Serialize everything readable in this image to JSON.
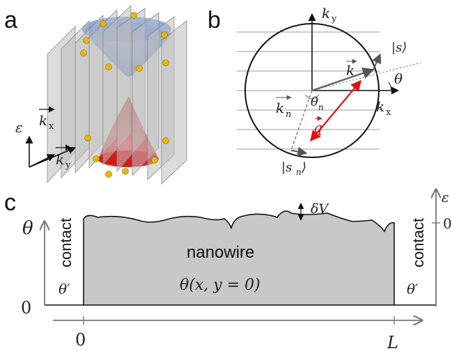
{
  "panel_a": {
    "letter": "a",
    "energy_axis": "ε",
    "kx_axis": "k",
    "kx_sub": "x",
    "ky_axis": "k",
    "ky_sub": "y"
  },
  "panel_b": {
    "letter": "b",
    "ky_label": "k",
    "ky_sub": "y",
    "kx_label": "k",
    "kx_sub": "x",
    "k_vec": "k",
    "kn_vec": "k",
    "kn_sub": "n",
    "q_vec": "q",
    "theta": "θ",
    "theta_n": "θ",
    "theta_n_sub": "n",
    "spin_s": "|s⟩",
    "spin_sn": "|s",
    "spin_sn_sub": "n",
    "spin_sn_close": "⟩"
  },
  "panel_c": {
    "letter": "c",
    "theta_axis": "θ",
    "theta_prime_left": "θ′",
    "theta_prime_right": "θ′",
    "contact_left": "contact",
    "contact_right": "contact",
    "nanowire": "nanowire",
    "theta_func": "θ(x, y = 0)",
    "delta_v": "δV",
    "zero_left": "0",
    "zero_x": "0",
    "length": "L",
    "eps_right": "ε",
    "zero_right": "0"
  },
  "colors": {
    "upper_cone": "#5b86d6",
    "lower_cone": "#e02020",
    "planes": "#c9c9c9",
    "spin_arrows": "#e6b800",
    "q_vector": "#e01010",
    "nanowire_fill": "#c8c8c8"
  }
}
